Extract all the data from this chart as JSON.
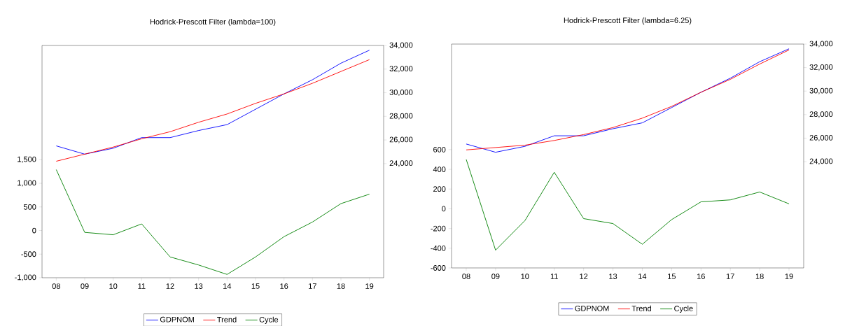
{
  "chart_data": [
    {
      "type": "line",
      "title": "Hodrick-Prescott Filter (lambda=100)",
      "categories": [
        "08",
        "09",
        "10",
        "11",
        "12",
        "13",
        "14",
        "15",
        "16",
        "17",
        "18",
        "19"
      ],
      "legend": "bottom",
      "series": [
        {
          "name": "GDPNOM",
          "color": "#0000ff",
          "axis": "y2",
          "values": [
            25500,
            24800,
            25300,
            26200,
            26200,
            26800,
            27300,
            28600,
            29900,
            31100,
            32500,
            33600
          ]
        },
        {
          "name": "Trend",
          "color": "#ff0000",
          "axis": "y2",
          "values": [
            24200,
            24800,
            25400,
            26100,
            26700,
            27500,
            28200,
            29100,
            29900,
            30800,
            31800,
            32800
          ]
        },
        {
          "name": "Cycle",
          "color": "#008000",
          "axis": "y",
          "values": [
            1290,
            -40,
            -90,
            140,
            -560,
            -730,
            -930,
            -560,
            -130,
            180,
            570,
            770
          ]
        }
      ],
      "ylim": [
        -1000,
        3920
      ],
      "yticks": [
        {
          "value": -1000,
          "label": "-1,000"
        },
        -500,
        0,
        500,
        {
          "value": 1000,
          "label": "1,000"
        },
        {
          "value": 1500,
          "label": "1,500"
        }
      ],
      "y2lim": [
        14340,
        34000
      ],
      "y2ticks": [
        {
          "value": 24000,
          "label": "24,000"
        },
        {
          "value": 26000,
          "label": "26,000"
        },
        {
          "value": 28000,
          "label": "28,000"
        },
        {
          "value": 30000,
          "label": "30,000"
        },
        {
          "value": 32000,
          "label": "32,000"
        },
        {
          "value": 34000,
          "label": "34,000"
        }
      ]
    },
    {
      "type": "line",
      "title": "Hodrick-Prescott Filter (lambda=6.25)",
      "categories": [
        "08",
        "09",
        "10",
        "11",
        "12",
        "13",
        "14",
        "15",
        "16",
        "17",
        "18",
        "19"
      ],
      "legend": "bottom",
      "series": [
        {
          "name": "GDPNOM",
          "color": "#0000ff",
          "axis": "y2",
          "values": [
            25500,
            24800,
            25300,
            26200,
            26200,
            26800,
            27300,
            28600,
            29900,
            31100,
            32500,
            33600
          ]
        },
        {
          "name": "Trend",
          "color": "#ff0000",
          "axis": "y2",
          "values": [
            25000,
            25200,
            25400,
            25800,
            26300,
            26900,
            27700,
            28700,
            29900,
            31000,
            32300,
            33500
          ]
        },
        {
          "name": "Cycle",
          "color": "#008000",
          "axis": "y",
          "values": [
            500,
            -420,
            -120,
            370,
            -100,
            -150,
            -360,
            -110,
            70,
            90,
            170,
            50
          ]
        }
      ],
      "ylim": [
        -600,
        1670
      ],
      "yticks": [
        -600,
        -400,
        -200,
        0,
        200,
        400,
        600
      ],
      "y2lim": [
        14960,
        34000
      ],
      "y2ticks": [
        {
          "value": 24000,
          "label": "24,000"
        },
        {
          "value": 26000,
          "label": "26,000"
        },
        {
          "value": 28000,
          "label": "28,000"
        },
        {
          "value": 30000,
          "label": "30,000"
        },
        {
          "value": 32000,
          "label": "32,000"
        },
        {
          "value": 34000,
          "label": "34,000"
        }
      ]
    }
  ]
}
